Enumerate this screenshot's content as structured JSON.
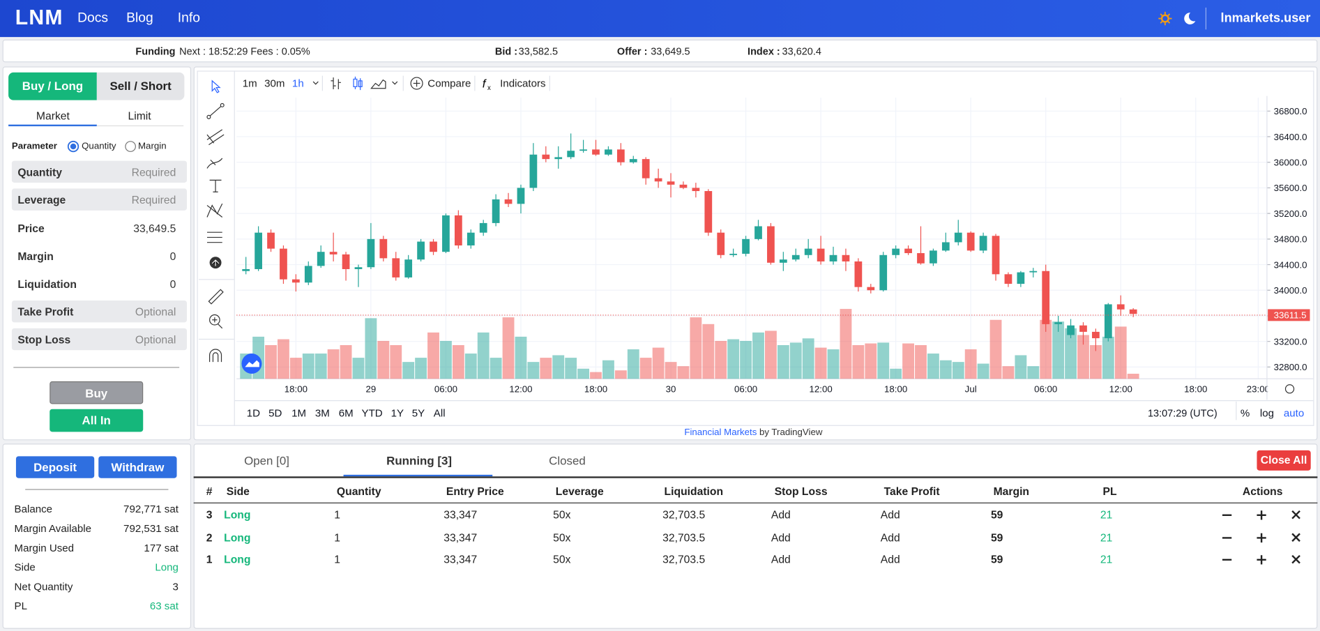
{
  "header": {
    "logo": "LNM",
    "nav": [
      "Docs",
      "Blog",
      "Info"
    ],
    "user": "lnmarkets.user"
  },
  "ticker": {
    "funding_label": "Funding",
    "funding": "Next : 18:52:29 Fees : 0.05%",
    "bid_label": "Bid :",
    "bid": "33,582.5",
    "offer_label": "Offer :",
    "offer": "33,649.5",
    "index_label": "Index :",
    "index": "33,620.4"
  },
  "order": {
    "sides": [
      "Buy / Long",
      "Sell / Short"
    ],
    "types": [
      "Market",
      "Limit"
    ],
    "parameter": "Parameter",
    "options": [
      "Quantity",
      "Margin"
    ],
    "fields": [
      {
        "label": "Quantity",
        "value": "Required"
      },
      {
        "label": "Leverage",
        "value": "Required"
      },
      {
        "label": "Price",
        "value": "33,649.5"
      },
      {
        "label": "Margin",
        "value": "0"
      },
      {
        "label": "Liquidation",
        "value": "0"
      },
      {
        "label": "Take Profit",
        "value": "Optional"
      },
      {
        "label": "Stop Loss",
        "value": "Optional"
      }
    ],
    "buttons": [
      "Buy",
      "All In"
    ]
  },
  "account": {
    "buttons": [
      "Deposit",
      "Withdraw"
    ],
    "rows": [
      {
        "label": "Balance",
        "value": "792,771 sat"
      },
      {
        "label": "Margin Available",
        "value": "792,531 sat"
      },
      {
        "label": "Margin Used",
        "value": "177 sat"
      },
      {
        "label": "Side",
        "value": "Long"
      },
      {
        "label": "Net Quantity",
        "value": "3"
      },
      {
        "label": "PL",
        "value": "63 sat"
      }
    ]
  },
  "toolbar": {
    "intervals": [
      "1m",
      "30m",
      "1h"
    ],
    "compare": "Compare",
    "indicators": "Indicators"
  },
  "chart_data": {
    "type": "candlestick",
    "up_color": "#26a69a",
    "down_color": "#ef5350",
    "xlim": [
      -0.75,
      81.7
    ],
    "xticks": [
      {
        "value": 4,
        "label": "18:00"
      },
      {
        "value": 10,
        "label": "29"
      },
      {
        "value": 16,
        "label": "06:00"
      },
      {
        "value": 22,
        "label": "12:00"
      },
      {
        "value": 28,
        "label": "18:00"
      },
      {
        "value": 34,
        "label": "30"
      },
      {
        "value": 40,
        "label": "06:00"
      },
      {
        "value": 46,
        "label": "12:00"
      },
      {
        "value": 52,
        "label": "18:00"
      },
      {
        "value": 58,
        "label": "Jul"
      },
      {
        "value": 64,
        "label": "06:00"
      },
      {
        "value": 70,
        "label": "12:00"
      },
      {
        "value": 76,
        "label": "18:00"
      },
      {
        "value": 81,
        "label": "23:00"
      }
    ],
    "ylim": [
      32616,
      37010
    ],
    "yticks": [
      {
        "value": 32800,
        "label": "32800.0"
      },
      {
        "value": 33200,
        "label": "33200.0"
      },
      {
        "value": 33600,
        "label": "33600.0"
      },
      {
        "value": 34000,
        "label": "34000.0"
      },
      {
        "value": 34400,
        "label": "34400.0"
      },
      {
        "value": 34800,
        "label": "34800.0"
      },
      {
        "value": 35200,
        "label": "35200.0"
      },
      {
        "value": 35600,
        "label": "35600.0"
      },
      {
        "value": 36000,
        "label": "36000.0"
      },
      {
        "value": 36400,
        "label": "36400.0"
      },
      {
        "value": 36800,
        "label": "36800.0"
      }
    ],
    "grid": true,
    "last_price": 33611.5,
    "open": [
      34300,
      34330,
      34900,
      34650,
      34170,
      34120,
      34380,
      34600,
      34560,
      34330,
      34360,
      34800,
      34500,
      34200,
      34480,
      34760,
      34600,
      35170,
      34700,
      34900,
      35050,
      35420,
      35350,
      35600,
      36120,
      36050,
      36080,
      36180,
      36200,
      36120,
      36200,
      36000,
      36050,
      35750,
      35700,
      35650,
      35600,
      35550,
      34900,
      34550,
      34570,
      34800,
      35000,
      34430,
      34480,
      34550,
      34650,
      34450,
      34550,
      34450,
      34050,
      34000,
      34550,
      34650,
      34580,
      34420,
      34620,
      34750,
      34900,
      34620,
      34850,
      34250,
      34100,
      34280,
      34300,
      33470,
      33300,
      33450,
      33350,
      33250,
      33780,
      33700
    ],
    "high": [
      34520,
      35000,
      34950,
      34700,
      34250,
      34450,
      34700,
      34900,
      34600,
      34400,
      35050,
      34850,
      34600,
      34550,
      34800,
      34800,
      35200,
      35250,
      34950,
      35100,
      35500,
      35520,
      35650,
      36300,
      36250,
      36250,
      36450,
      36350,
      36350,
      36250,
      36300,
      36100,
      36080,
      35900,
      35830,
      35700,
      35680,
      35580,
      34950,
      34650,
      34850,
      35100,
      35050,
      34600,
      34650,
      34800,
      34850,
      34680,
      34650,
      34500,
      34100,
      34600,
      34700,
      34700,
      35000,
      34650,
      34900,
      35100,
      34920,
      34900,
      34880,
      34280,
      34300,
      34350,
      34400,
      33600,
      33550,
      33500,
      33400,
      33800,
      33920,
      33720
    ],
    "low": [
      34250,
      34300,
      34600,
      34100,
      33980,
      34080,
      34350,
      34450,
      34150,
      34050,
      34330,
      34450,
      34150,
      34180,
      34450,
      34550,
      34580,
      34650,
      34650,
      34850,
      35000,
      35300,
      35200,
      35550,
      36000,
      35900,
      36050,
      36150,
      36100,
      36100,
      35950,
      35980,
      35650,
      35600,
      35450,
      35580,
      35450,
      34850,
      34500,
      34520,
      34530,
      34780,
      34400,
      34300,
      34450,
      34500,
      34400,
      34400,
      34300,
      33980,
      33950,
      33980,
      34500,
      34550,
      34400,
      34380,
      34600,
      34700,
      34600,
      34580,
      34150,
      34050,
      34050,
      34200,
      33350,
      33350,
      33250,
      33150,
      33050,
      33200,
      33600,
      33580
    ],
    "close": [
      34330,
      34900,
      34650,
      34170,
      34120,
      34380,
      34600,
      34560,
      34330,
      34360,
      34800,
      34500,
      34200,
      34480,
      34760,
      34600,
      35170,
      34700,
      34900,
      35050,
      35420,
      35350,
      35600,
      36120,
      36050,
      36080,
      36180,
      36200,
      36120,
      36200,
      36000,
      36050,
      35750,
      35700,
      35650,
      35600,
      35550,
      34900,
      34550,
      34570,
      34800,
      35000,
      34430,
      34480,
      34550,
      34650,
      34450,
      34550,
      34450,
      34050,
      34000,
      34550,
      34650,
      34580,
      34420,
      34620,
      34750,
      34900,
      34620,
      34850,
      34250,
      34100,
      34280,
      34300,
      33470,
      33500,
      33450,
      33350,
      33250,
      33780,
      33700,
      33630
    ],
    "volume": [
      30,
      50,
      40,
      47,
      25,
      30,
      30,
      35,
      40,
      25,
      72,
      45,
      40,
      20,
      25,
      55,
      45,
      40,
      30,
      55,
      25,
      73,
      50,
      20,
      25,
      28,
      25,
      12,
      8,
      22,
      10,
      35,
      25,
      37,
      20,
      15,
      73,
      65,
      45,
      47,
      45,
      55,
      57,
      40,
      43,
      48,
      37,
      35,
      83,
      40,
      42,
      43,
      12,
      42,
      40,
      30,
      22,
      20,
      35,
      18,
      70,
      15,
      28,
      15,
      70,
      68,
      60,
      52,
      40,
      50,
      62,
      6
    ],
    "ranges": [
      "1D",
      "5D",
      "1M",
      "3M",
      "6M",
      "YTD",
      "1Y",
      "5Y",
      "All"
    ],
    "clock": "13:07:29 (UTC)",
    "scale_options": [
      "%",
      "log",
      "auto"
    ],
    "credit_link": "Financial Markets",
    "credit": "by TradingView"
  },
  "positions": {
    "tabs": [
      "Open [0]",
      "Running [3]",
      "Closed"
    ],
    "close_all": "Close All",
    "columns": [
      "#",
      "Side",
      "Quantity",
      "Entry Price",
      "Leverage",
      "Liquidation",
      "Stop Loss",
      "Take Profit",
      "Margin",
      "PL",
      "Actions"
    ],
    "rows": [
      [
        "3",
        "Long",
        "1",
        "33,347",
        "50x",
        "32,703.5",
        "Add",
        "Add",
        "59",
        "21"
      ],
      [
        "2",
        "Long",
        "1",
        "33,347",
        "50x",
        "32,703.5",
        "Add",
        "Add",
        "59",
        "21"
      ],
      [
        "1",
        "Long",
        "1",
        "33,347",
        "50x",
        "32,703.5",
        "Add",
        "Add",
        "59",
        "21"
      ]
    ]
  }
}
